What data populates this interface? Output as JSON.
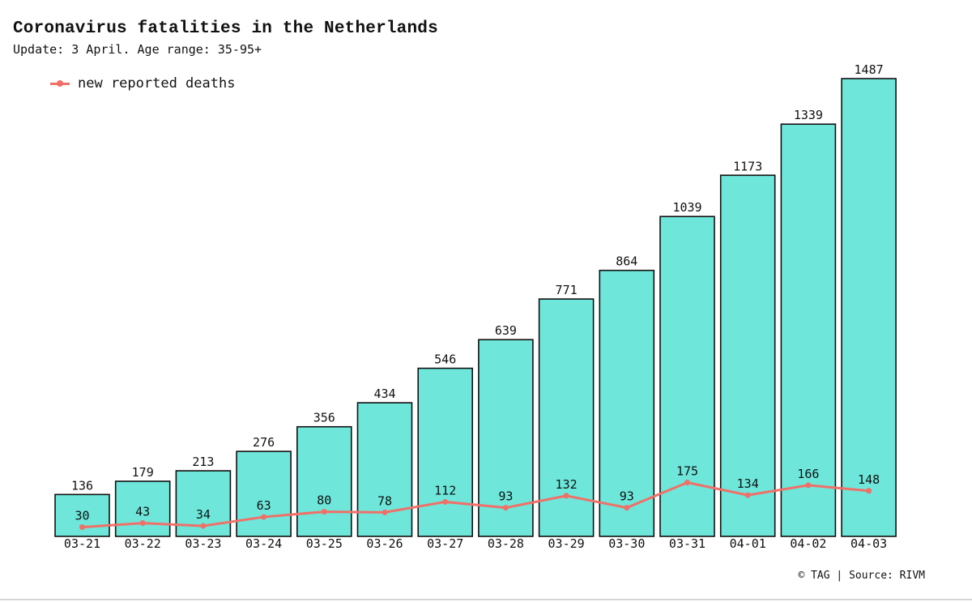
{
  "title": "Coronavirus fatalities in the Netherlands",
  "subtitle": "Update: 3 April. Age range: 35-95+",
  "legend_label": "new reported deaths",
  "source": "© TAG | Source: RIVM",
  "colors": {
    "bar": "#6ee6da",
    "bar_outline": "#111111",
    "line": "#f07068"
  },
  "chart_data": {
    "type": "bar",
    "categories": [
      "03-21",
      "03-22",
      "03-23",
      "03-24",
      "03-25",
      "03-26",
      "03-27",
      "03-28",
      "03-29",
      "03-30",
      "03-31",
      "04-01",
      "04-02",
      "04-03"
    ],
    "series": [
      {
        "values": [
          136,
          179,
          213,
          276,
          356,
          434,
          546,
          639,
          771,
          864,
          1039,
          1173,
          1339,
          1487
        ]
      },
      {
        "name": "new reported deaths",
        "type": "line",
        "values": [
          30,
          43,
          34,
          63,
          80,
          78,
          112,
          93,
          132,
          93,
          175,
          134,
          166,
          148
        ]
      }
    ],
    "ylim": [
      0,
      1487
    ],
    "grid": false,
    "legend_position": "top-left"
  }
}
